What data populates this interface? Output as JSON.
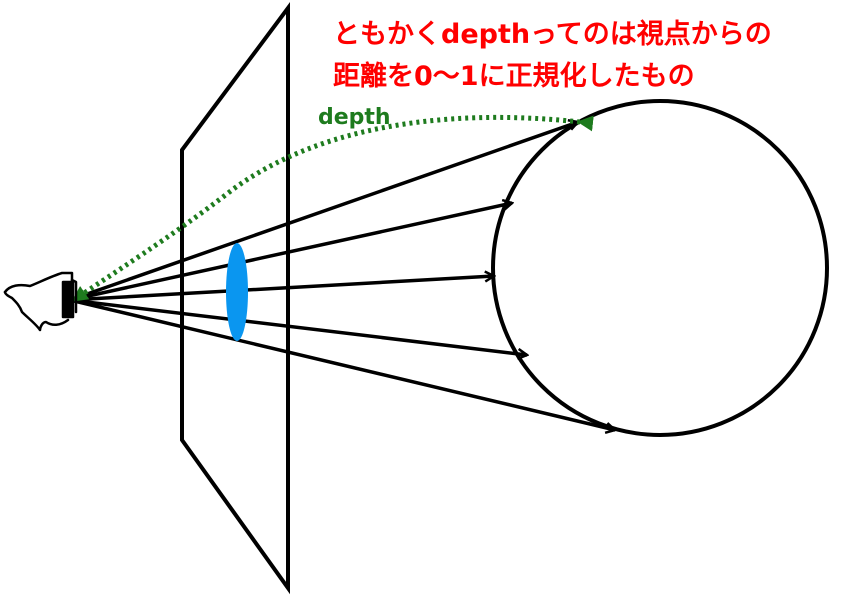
{
  "annotation": {
    "lines": [
      "ともかくdepthってのは視点からの",
      "距離を0～1に正規化したもの"
    ]
  },
  "depth_label": "depth",
  "colors": {
    "caption": "#ff0000",
    "depth_arrow": "#1e7b1e",
    "lens": "#0a96f0",
    "stroke": "#000000"
  },
  "icons": {
    "viewer": "eye-icon"
  }
}
